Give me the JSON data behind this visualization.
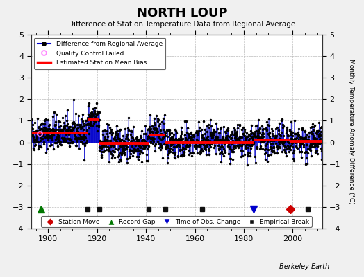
{
  "title": "NORTH LOUP",
  "subtitle": "Difference of Station Temperature Data from Regional Average",
  "ylabel": "Monthly Temperature Anomaly Difference (°C)",
  "xlim": [
    1893,
    2012
  ],
  "ylim": [
    -4,
    5
  ],
  "yticks_left": [
    -4,
    -3,
    -2,
    -1,
    0,
    1,
    2,
    3,
    4
  ],
  "yticks_right": [
    -4,
    -3,
    -2,
    -1,
    0,
    1,
    2,
    3,
    4,
    5
  ],
  "xticks": [
    1900,
    1920,
    1940,
    1960,
    1980,
    2000
  ],
  "background_color": "#f0f0f0",
  "plot_background": "#ffffff",
  "seed": 42,
  "record_gap": [
    1897
  ],
  "time_of_obs_change": [
    1984
  ],
  "empirical_break": [
    1916,
    1921,
    1941,
    1948,
    1963,
    2006
  ],
  "station_move_year": [
    1999
  ],
  "bias_segments": [
    {
      "start": 1893,
      "end": 1916,
      "bias": 0.45
    },
    {
      "start": 1916,
      "end": 1921,
      "bias": 1.05
    },
    {
      "start": 1921,
      "end": 1941,
      "bias": -0.05
    },
    {
      "start": 1941,
      "end": 1948,
      "bias": 0.35
    },
    {
      "start": 1948,
      "end": 1963,
      "bias": 0.0
    },
    {
      "start": 1963,
      "end": 1984,
      "bias": 0.0
    },
    {
      "start": 1984,
      "end": 1999,
      "bias": 0.1
    },
    {
      "start": 1999,
      "end": 2006,
      "bias": 0.05
    },
    {
      "start": 2006,
      "end": 2012,
      "bias": 0.05
    }
  ],
  "qc_failed_x": 1896.5,
  "qc_failed_y": 0.4,
  "bottom_y": -3.1,
  "colors": {
    "line": "#0000cc",
    "line_fill": "#7777ff",
    "dot": "#000000",
    "bias": "#ff0000",
    "qc": "#ff88ff",
    "station_move": "#cc0000",
    "record_gap": "#007700",
    "time_obs": "#0000cc",
    "empirical": "#111111",
    "grid": "#aaaaaa",
    "bg": "#f0f0f0",
    "plot_bg": "#ffffff"
  }
}
